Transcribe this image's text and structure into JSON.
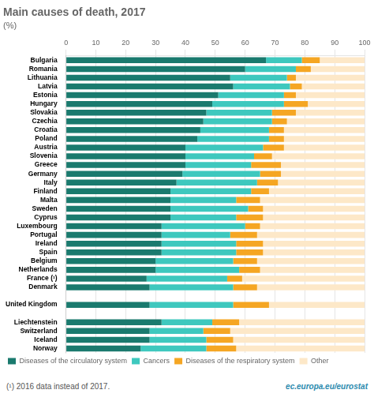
{
  "chart_data": {
    "type": "bar",
    "orientation": "horizontal",
    "stacked": true,
    "title": "Main causes of death, 2017",
    "subtitle": "(%)",
    "categories": [
      "Bulgaria",
      "Romania",
      "Lithuania",
      "Latvia",
      "Estonia",
      "Hungary",
      "Slovakia",
      "Czechia",
      "Croatia",
      "Poland",
      "Austria",
      "Slovenia",
      "Greece",
      "Germany",
      "Italy",
      "Finland",
      "Malta",
      "Sweden",
      "Cyprus",
      "Luxembourg",
      "Portugal",
      "Ireland",
      "Spain",
      "Belgium",
      "Netherlands",
      "France (¹)",
      "Denmark",
      null,
      "United Kingdom",
      null,
      "Liechtenstein",
      "Switzerland",
      "Iceland",
      "Norway"
    ],
    "series": [
      {
        "name": "Diseases of the circulatory system",
        "color": "#1a7a6e",
        "values": [
          67,
          60,
          55,
          56,
          51,
          49,
          47,
          46,
          45,
          44,
          40,
          40,
          40,
          39,
          37,
          35,
          35,
          35,
          35,
          32,
          32,
          32,
          32,
          30,
          30,
          27,
          28,
          0,
          28,
          0,
          32,
          28,
          28,
          25
        ]
      },
      {
        "name": "Cancers",
        "color": "#3ec8be",
        "values": [
          12,
          17,
          19,
          19,
          22,
          24,
          22,
          23,
          23,
          24,
          26,
          23,
          22,
          26,
          27,
          27,
          22,
          26,
          22,
          28,
          23,
          25,
          25,
          26,
          28,
          27,
          28,
          0,
          28,
          0,
          17,
          18,
          19,
          22
        ]
      },
      {
        "name": "Diseases of the respiratory system",
        "color": "#f5a623",
        "values": [
          6,
          5,
          3,
          4,
          4,
          8,
          8,
          5,
          5,
          5,
          7,
          6,
          10,
          7,
          7,
          6,
          8,
          5,
          9,
          5,
          9,
          9,
          9,
          8,
          7,
          5,
          8,
          0,
          12,
          0,
          9,
          9,
          9,
          10
        ]
      },
      {
        "name": "Other",
        "color": "#fde8c8",
        "values": [
          15,
          18,
          23,
          21,
          23,
          19,
          23,
          26,
          27,
          27,
          27,
          31,
          28,
          28,
          29,
          32,
          35,
          34,
          34,
          35,
          36,
          34,
          34,
          36,
          35,
          41,
          36,
          0,
          32,
          0,
          42,
          45,
          44,
          43
        ]
      }
    ],
    "xlim": [
      0,
      100
    ],
    "xticks": [
      0,
      10,
      20,
      30,
      40,
      50,
      60,
      70,
      80,
      90,
      100
    ],
    "grid": true,
    "legend": "bottom",
    "annotations": [
      "(¹) 2016 data instead of 2017.",
      "ec.europa.eu/eurostat"
    ]
  }
}
